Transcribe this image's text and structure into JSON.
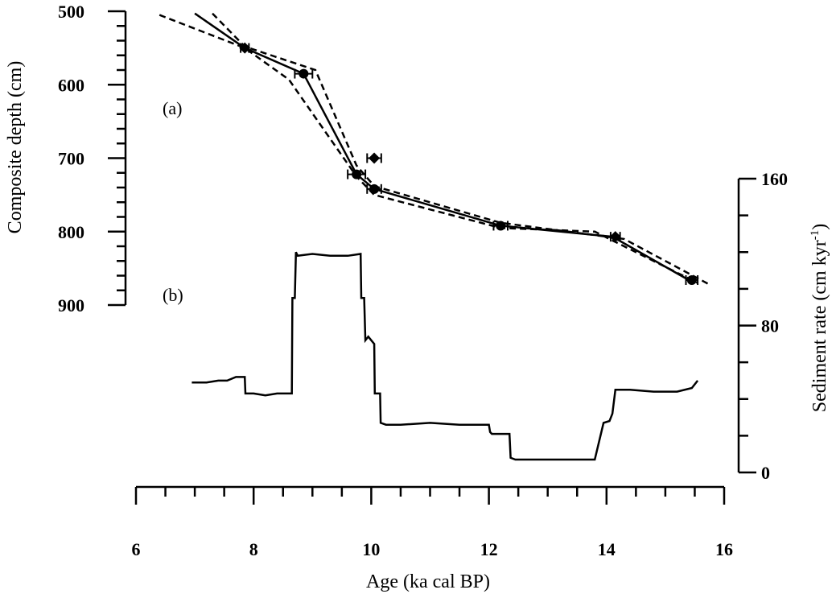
{
  "chart_data": [
    {
      "panel": "(a)",
      "type": "line",
      "xlabel": "Age (ka cal BP)",
      "ylabel": "Composite depth (cm)",
      "xlim": [
        6,
        16
      ],
      "ylim": [
        500,
        900
      ],
      "y_inverted": true,
      "x_ticks": [
        6,
        8,
        10,
        12,
        14,
        16
      ],
      "y_ticks": [
        500,
        600,
        700,
        800,
        900
      ],
      "grid": false,
      "series": [
        {
          "role": "age-depth model",
          "style": "solid",
          "color": "#000000",
          "x": [
            7.0,
            7.85,
            8.85,
            9.75,
            10.05,
            12.2,
            14.1,
            15.4
          ],
          "y": [
            503,
            550,
            585,
            722,
            742,
            792,
            807,
            866
          ]
        },
        {
          "role": "confidence bound",
          "style": "dashed",
          "color": "#000000",
          "x": [
            6.4,
            7.85,
            8.6,
            9.75,
            10.05,
            12.2,
            13.8,
            15.55
          ],
          "y": [
            505,
            550,
            593,
            725,
            750,
            795,
            800,
            870
          ]
        },
        {
          "role": "confidence bound",
          "style": "dashed",
          "color": "#000000",
          "x": [
            7.3,
            7.85,
            9.05,
            9.75,
            10.05,
            12.2,
            14.3,
            15.75
          ],
          "y": [
            503,
            548,
            580,
            710,
            738,
            788,
            810,
            872
          ]
        }
      ],
      "points": [
        {
          "x": 7.85,
          "y": 550,
          "err": 0.07,
          "marker": "diamond"
        },
        {
          "x": 8.85,
          "y": 585,
          "err": 0.15,
          "marker": "circle"
        },
        {
          "x": 10.05,
          "y": 700,
          "err": 0.12,
          "marker": "diamond"
        },
        {
          "x": 9.75,
          "y": 722,
          "err": 0.15,
          "marker": "circle"
        },
        {
          "x": 10.05,
          "y": 742,
          "err": 0.12,
          "marker": "circle"
        },
        {
          "x": 12.2,
          "y": 792,
          "err": 0.12,
          "marker": "circle"
        },
        {
          "x": 14.15,
          "y": 807,
          "err": 0.08,
          "marker": "diamond"
        },
        {
          "x": 15.45,
          "y": 866,
          "err": 0.1,
          "marker": "circle"
        }
      ]
    },
    {
      "panel": "(b)",
      "type": "line",
      "xlabel": "Age (ka cal BP)",
      "ylabel": "Sediment rate (cm kyr-1)",
      "xlim": [
        6,
        16
      ],
      "ylim": [
        0,
        160
      ],
      "y_ticks": [
        0,
        80,
        160
      ],
      "grid": false,
      "series": [
        {
          "style": "solid",
          "color": "#000000",
          "x": [
            6.95,
            7.2,
            7.4,
            7.55,
            7.7,
            7.8,
            7.85,
            7.86,
            8.0,
            8.2,
            8.4,
            8.65,
            8.66,
            8.7,
            8.72,
            8.75,
            9.0,
            9.3,
            9.6,
            9.82,
            9.83,
            9.88,
            9.9,
            9.95,
            10.0,
            10.05,
            10.06,
            10.15,
            10.16,
            10.25,
            10.5,
            11.0,
            11.5,
            12.0,
            12.02,
            12.05,
            12.35,
            12.37,
            12.45,
            12.5,
            13.0,
            13.5,
            13.8,
            13.95,
            14.05,
            14.1,
            14.15,
            14.4,
            14.8,
            15.2,
            15.45,
            15.55
          ],
          "y": [
            49,
            49,
            50,
            50,
            52,
            52,
            52,
            43,
            43,
            42,
            43,
            43,
            95,
            95,
            120,
            118,
            119,
            118,
            118,
            119,
            95,
            95,
            72,
            74,
            72,
            70,
            43,
            43,
            27,
            26,
            26,
            27,
            26,
            26,
            22,
            21,
            21,
            8,
            7,
            7,
            7,
            7,
            7,
            27,
            28,
            32,
            45,
            45,
            44,
            44,
            46,
            50
          ]
        }
      ]
    }
  ],
  "labels": {
    "xlabel": "Age (ka cal BP)",
    "ylabel_left": "Composite depth (cm)",
    "ylabel_right_main": "Sediment rate (cm kyr",
    "ylabel_right_sup": "-1",
    "ylabel_right_close": ")",
    "panel_a": "(a)",
    "panel_b": "(b)"
  }
}
